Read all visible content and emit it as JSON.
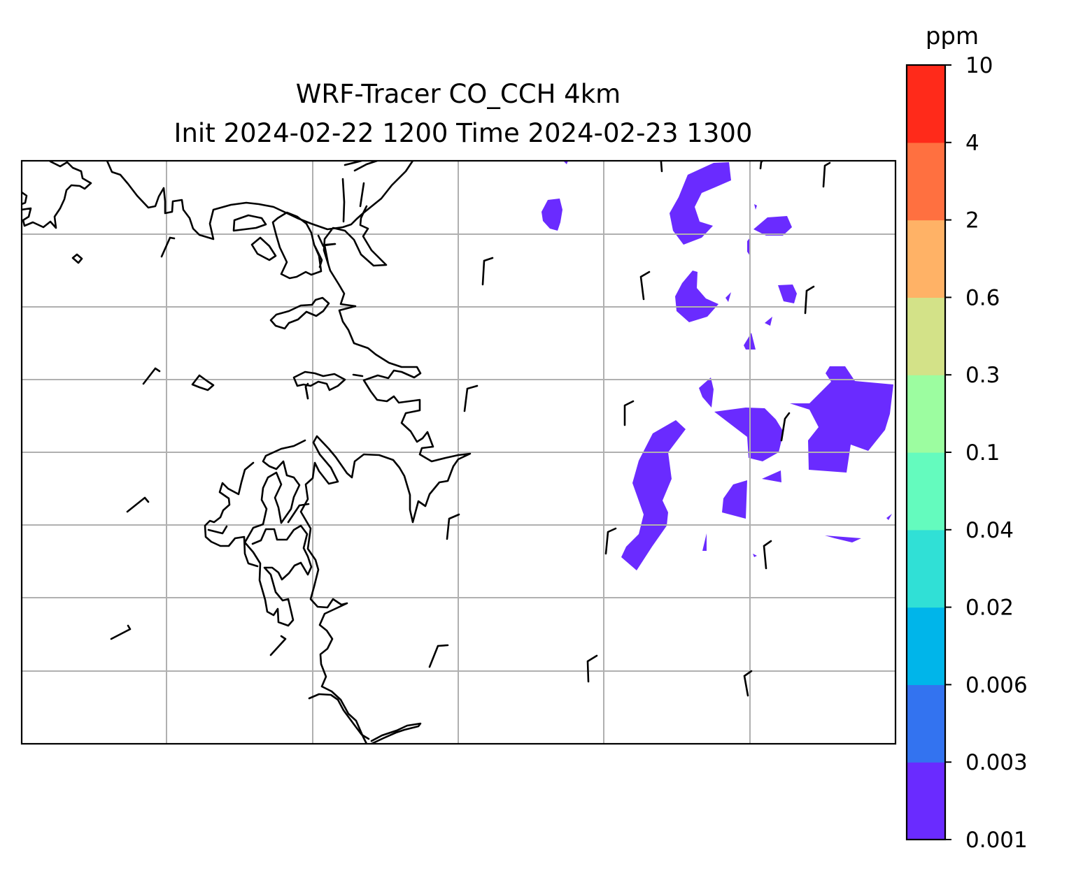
{
  "title": {
    "line1": "WRF-Tracer CO_CCH 4km",
    "line2": "Init 2024-02-22 1200 Time 2024-02-23 1300"
  },
  "colorbar": {
    "unit": "ppm",
    "levels": [
      "0.001",
      "0.003",
      "0.006",
      "0.02",
      "0.04",
      "0.1",
      "0.3",
      "0.6",
      "2",
      "4",
      "10"
    ],
    "colors": [
      "#6a2bff",
      "#3373f0",
      "#00b5ea",
      "#30e0d6",
      "#64fbbe",
      "#9cfda0",
      "#d3e288",
      "#ffb266",
      "#ff7040",
      "#ff2a1a"
    ]
  },
  "map": {
    "gridlines": true,
    "plume_color": "#6a2bff",
    "wind_barbs": "shown"
  }
}
